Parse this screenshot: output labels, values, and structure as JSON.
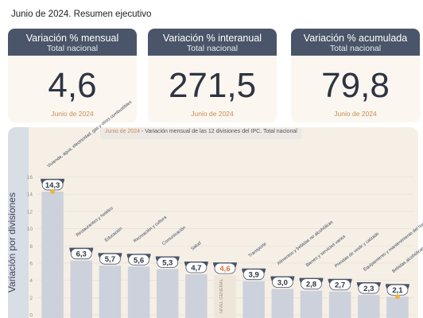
{
  "header": {
    "title": "Junio de 2024. Resumen ejecutivo"
  },
  "cards": [
    {
      "title": "Variación % mensual",
      "subtitle": "Total nacional",
      "value": "4,6",
      "date": "Junio de 2024"
    },
    {
      "title": "Variación % interanual",
      "subtitle": "Total nacional",
      "value": "271,5",
      "date": "Junio de 2024"
    },
    {
      "title": "Variación % acumulada",
      "subtitle": "Total nacional",
      "value": "79,8",
      "date": "Junio de 2024"
    }
  ],
  "chart_header": {
    "date": "Junio de 2024",
    "text": " - Variación mensual de las 12 divisiones del IPC. Total nacional"
  },
  "sidebar_label": "Variación por divisiones",
  "colors": {
    "header": "#4a5569",
    "bar": "#ccd1db",
    "general": "#e06a3a",
    "dot": "#f0b43c",
    "panel": "#f5efe6"
  },
  "chart_data": {
    "type": "bar",
    "title": "Junio de 2024 - Variación mensual de las 12 divisiones del IPC. Total nacional",
    "ylabel": "Variación por divisiones",
    "ylim": [
      0,
      16
    ],
    "yticks": [
      0,
      2,
      4,
      6,
      8,
      10,
      12,
      14,
      16
    ],
    "categories": [
      "Vivienda, agua, electricidad, gas y otros combustibles",
      "Restaurantes y hoteles",
      "Educación",
      "Recreación y cultura",
      "Comunicación",
      "Salud",
      "NIVEL GENERAL",
      "Transporte",
      "Alimentos y bebidas no alcohólicas",
      "Bienes y servicios varios",
      "Prendas de vestir y calzado",
      "Equipamiento y mantenimiento del hogar",
      "Bebidas alcohólicas y tabaco"
    ],
    "values": [
      14.3,
      6.3,
      5.7,
      5.6,
      5.3,
      4.7,
      4.6,
      3.9,
      3.0,
      2.8,
      2.7,
      2.3,
      2.1
    ],
    "value_labels": [
      "14,3",
      "6,3",
      "5,7",
      "5,6",
      "5,3",
      "4,7",
      "4,6",
      "3,9",
      "3,0",
      "2,8",
      "2,7",
      "2,3",
      "2,1"
    ],
    "highlight": "NIVEL GENERAL",
    "general_label": "NIVEL GENERAL",
    "markers": [
      "max",
      "min"
    ]
  }
}
